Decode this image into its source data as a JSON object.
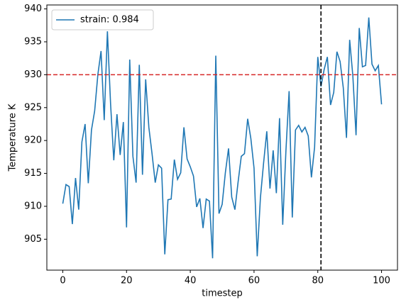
{
  "chart_data": {
    "type": "line",
    "x_label": "timestep",
    "y_label": "Temperature K",
    "x": [
      0,
      1,
      2,
      3,
      4,
      5,
      6,
      7,
      8,
      9,
      10,
      11,
      12,
      13,
      14,
      15,
      16,
      17,
      18,
      19,
      20,
      21,
      22,
      23,
      24,
      25,
      26,
      27,
      28,
      29,
      30,
      31,
      32,
      33,
      34,
      35,
      36,
      37,
      38,
      39,
      40,
      41,
      42,
      43,
      44,
      45,
      46,
      47,
      48,
      49,
      50,
      51,
      52,
      53,
      54,
      55,
      56,
      57,
      58,
      59,
      60,
      61,
      62,
      63,
      64,
      65,
      66,
      67,
      68,
      69,
      70,
      71,
      72,
      73,
      74,
      75,
      76,
      77,
      78,
      79,
      80,
      81,
      82,
      83,
      84,
      85,
      86,
      87,
      88,
      89,
      90,
      91,
      92,
      93,
      94,
      95,
      96,
      97,
      98,
      99,
      100
    ],
    "series": [
      {
        "name": "strain: 0.984",
        "color": "#1f77b4",
        "values": [
          910.4,
          913.3,
          913.0,
          907.3,
          914.3,
          909.5,
          919.8,
          922.5,
          913.5,
          921.6,
          924.5,
          930.0,
          933.6,
          923.1,
          936.6,
          925.5,
          917.0,
          924.0,
          917.8,
          922.8,
          906.8,
          932.3,
          917.6,
          913.6,
          931.5,
          914.8,
          929.3,
          922.0,
          918.0,
          913.6,
          916.3,
          915.8,
          902.7,
          911.0,
          911.1,
          917.1,
          914.1,
          915.1,
          922.0,
          917.2,
          916.0,
          914.6,
          909.9,
          911.2,
          906.7,
          911.1,
          910.8,
          902.1,
          932.9,
          908.9,
          910.3,
          915.1,
          918.8,
          911.4,
          909.5,
          913.7,
          917.6,
          918.0,
          923.3,
          920.3,
          915.8,
          902.4,
          911.3,
          916.6,
          921.4,
          912.7,
          918.5,
          912.0,
          923.4,
          907.2,
          918.4,
          927.5,
          908.3,
          921.6,
          922.3,
          921.3,
          922.0,
          920.7,
          914.4,
          919.0,
          932.7,
          928.2,
          930.8,
          932.7,
          925.4,
          927.3,
          933.5,
          932.0,
          928.0,
          920.4,
          935.3,
          929.8,
          920.8,
          937.1,
          931.2,
          931.4,
          938.7,
          931.6,
          930.6,
          931.4,
          925.5
        ]
      }
    ],
    "hline": {
      "value": 930,
      "color": "#d62728"
    },
    "vline": {
      "value": 81,
      "color": "#000000"
    },
    "xlim": [
      -5,
      105
    ],
    "xticks": [
      0,
      20,
      40,
      60,
      80,
      100
    ],
    "ylim": [
      900.3,
      940.6
    ],
    "yticks": [
      905,
      910,
      915,
      920,
      925,
      930,
      935,
      940
    ],
    "legend": "upper left"
  }
}
